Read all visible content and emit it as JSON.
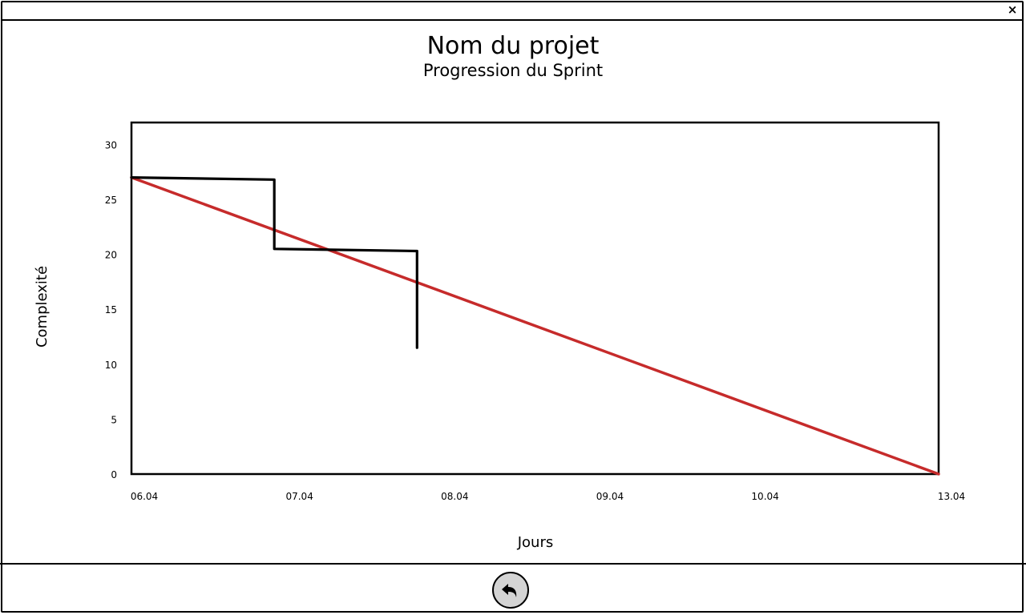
{
  "window": {
    "close_label": "×"
  },
  "page": {
    "title": "Nom du projet",
    "subtitle": "Progression du Sprint"
  },
  "footer": {
    "back_icon": "undo-arrow-icon"
  },
  "colors": {
    "ideal": "#c62b2b",
    "actual": "#000000",
    "back_button_bg": "#d4d4d4"
  },
  "chart_data": {
    "type": "line",
    "title": "Nom du projet",
    "subtitle": "Progression du Sprint",
    "xlabel": "Jours",
    "ylabel": "Complexité",
    "x_ticks": [
      "06.04",
      "07.04",
      "08.04",
      "09.04",
      "10.04",
      "13.04"
    ],
    "y_ticks": [
      0,
      5,
      10,
      15,
      20,
      25,
      30
    ],
    "ylim": [
      0,
      32
    ],
    "xlim": [
      0,
      5.2
    ],
    "grid": false,
    "series": [
      {
        "role": "ideal",
        "color": "#c62b2b",
        "x": [
          0,
          5.2
        ],
        "y": [
          27,
          0
        ]
      },
      {
        "role": "actual",
        "color": "#000000",
        "x": [
          0,
          0.92,
          0.92,
          1.84,
          1.84
        ],
        "y": [
          27,
          26.8,
          20.5,
          20.3,
          11.5
        ]
      }
    ]
  }
}
